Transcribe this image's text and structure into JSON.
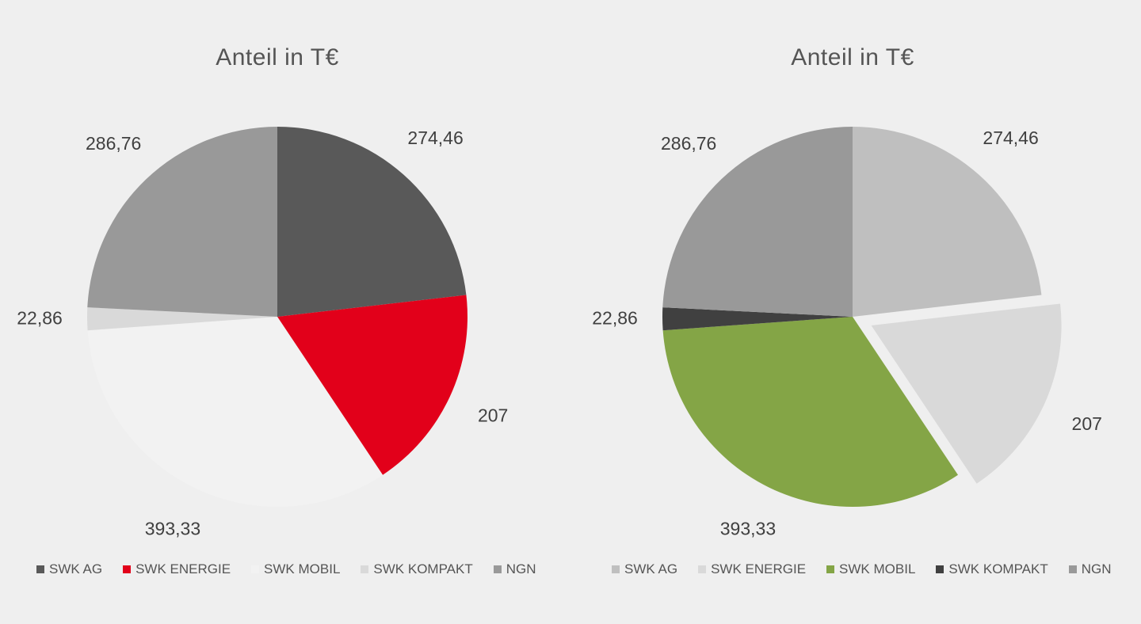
{
  "chart_data": [
    {
      "type": "pie",
      "title": "Anteil in T€",
      "categories": [
        "SWK AG",
        "SWK ENERGIE",
        "SWK MOBIL",
        "SWK KOMPAKT",
        "NGN"
      ],
      "values": [
        274.46,
        207,
        393.33,
        22.86,
        286.76
      ],
      "data_labels": [
        "274,46",
        "207",
        "393,33",
        "22,86",
        "286,76"
      ],
      "colors": [
        "#595959",
        "#e2001a",
        "#f2f2f2",
        "#d9d9d9",
        "#999999"
      ],
      "exploded": [
        false,
        false,
        false,
        false,
        false
      ],
      "legend_position": "bottom"
    },
    {
      "type": "pie",
      "title": "Anteil in T€",
      "categories": [
        "SWK AG",
        "SWK ENERGIE",
        "SWK MOBIL",
        "SWK KOMPAKT",
        "NGN"
      ],
      "values": [
        274.46,
        207,
        393.33,
        22.86,
        286.76
      ],
      "data_labels": [
        "274,46",
        "207",
        "393,33",
        "22,86",
        "286,76"
      ],
      "colors": [
        "#bfbfbf",
        "#d9d9d9",
        "#84a546",
        "#404040",
        "#999999"
      ],
      "exploded": [
        false,
        true,
        false,
        false,
        false
      ],
      "legend_position": "bottom"
    }
  ]
}
